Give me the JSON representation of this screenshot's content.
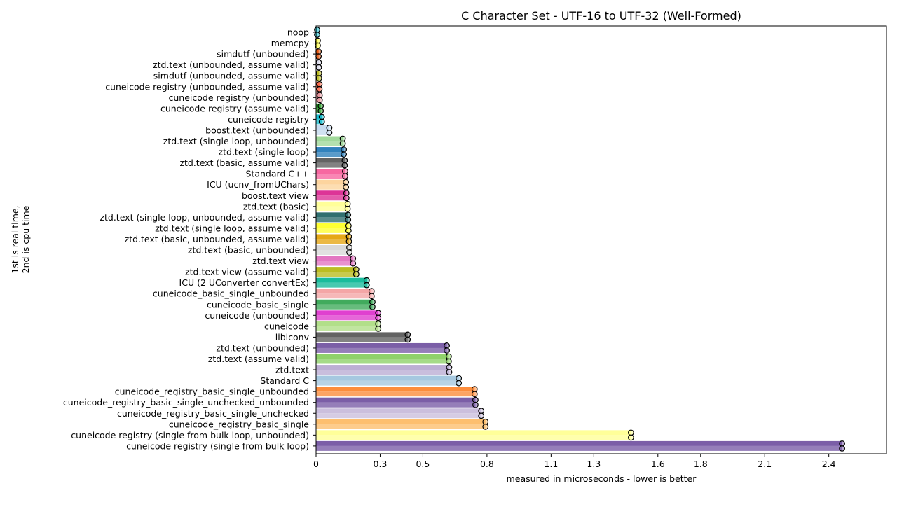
{
  "chart_data": {
    "type": "bar",
    "orientation": "horizontal",
    "title": "C Character Set - UTF-16 to UTF-32 (Well-Formed)",
    "xlabel": "measured in microseconds - lower is better",
    "ylabel_line1": "1st is real time,",
    "ylabel_line2": "2nd is cpu time",
    "xlim": [
      0,
      2.67
    ],
    "xticks": [
      0,
      0.3,
      0.5,
      0.8,
      1.1,
      1.3,
      1.6,
      1.8,
      2.1,
      2.4
    ],
    "grid": false,
    "series_names": [
      "real time",
      "cpu time"
    ],
    "categories": [
      "noop",
      "memcpy",
      "simdutf (unbounded)",
      "ztd.text (unbounded, assume valid)",
      "simdutf (unbounded, assume valid)",
      "cuneicode registry (unbounded, assume valid)",
      "cuneicode registry (unbounded)",
      "cuneicode registry (assume valid)",
      "cuneicode registry",
      "boost.text (unbounded)",
      "ztd.text (single loop, unbounded)",
      "ztd.text (single loop)",
      "ztd.text (basic, assume valid)",
      "Standard C++",
      "ICU (ucnv_fromUChars)",
      "boost.text view",
      "ztd.text (basic)",
      "ztd.text (single loop, unbounded, assume valid)",
      "ztd.text (single loop, assume valid)",
      "ztd.text (basic, unbounded, assume valid)",
      "ztd.text (basic, unbounded)",
      "ztd.text view",
      "ztd.text view (assume valid)",
      "ICU (2 UConverter convertEx)",
      "cuneicode_basic_single_unbounded",
      "cuneicode_basic_single",
      "cuneicode (unbounded)",
      "cuneicode",
      "libiconv",
      "ztd.text (unbounded)",
      "ztd.text (assume valid)",
      "ztd.text",
      "Standard C",
      "cuneicode_registry_basic_single_unbounded",
      "cuneicode_registry_basic_single_unchecked_unbounded",
      "cuneicode_registry_basic_single_unchecked",
      "cuneicode_registry_basic_single",
      "cuneicode registry (single from bulk loop, unbounded)",
      "cuneicode registry (single from bulk loop)"
    ],
    "real_time": [
      0.005,
      0.008,
      0.012,
      0.013,
      0.014,
      0.016,
      0.017,
      0.022,
      0.027,
      0.062,
      0.125,
      0.13,
      0.134,
      0.136,
      0.14,
      0.142,
      0.148,
      0.15,
      0.152,
      0.154,
      0.156,
      0.173,
      0.188,
      0.237,
      0.26,
      0.264,
      0.291,
      0.291,
      0.429,
      0.612,
      0.621,
      0.623,
      0.668,
      0.742,
      0.746,
      0.773,
      0.793,
      1.474,
      2.462
    ],
    "cpu_time": [
      0.005,
      0.008,
      0.012,
      0.013,
      0.014,
      0.016,
      0.017,
      0.022,
      0.027,
      0.062,
      0.125,
      0.13,
      0.134,
      0.136,
      0.14,
      0.142,
      0.148,
      0.15,
      0.152,
      0.154,
      0.156,
      0.173,
      0.188,
      0.237,
      0.26,
      0.264,
      0.291,
      0.291,
      0.429,
      0.612,
      0.621,
      0.623,
      0.668,
      0.742,
      0.746,
      0.773,
      0.793,
      1.474,
      2.462
    ],
    "colors": [
      "#17becf",
      "#ffff33",
      "#e6550d",
      "#dadaeb",
      "#bcbd22",
      "#fb6a4a",
      "#e7969c",
      "#2ca02c",
      "#17becf",
      "#c6dbef",
      "#a1d99b",
      "#3182bd",
      "#636363",
      "#f768a1",
      "#fdd49e",
      "#dd3497",
      "#ffff99",
      "#2f6f6f",
      "#ffff33",
      "#e6a817",
      "#d9d9d9",
      "#e377c2",
      "#bcbd22",
      "#1abc9c",
      "#f4a6a6",
      "#41ab5d",
      "#e040d0",
      "#b2df8a",
      "#636363",
      "#7b5ea7",
      "#8fd16a",
      "#bcaed4",
      "#a6c8e0",
      "#fd8d3c",
      "#7b5ea7",
      "#cbbfdd",
      "#fdbf6f",
      "#ffff99",
      "#7b5ea7"
    ]
  }
}
